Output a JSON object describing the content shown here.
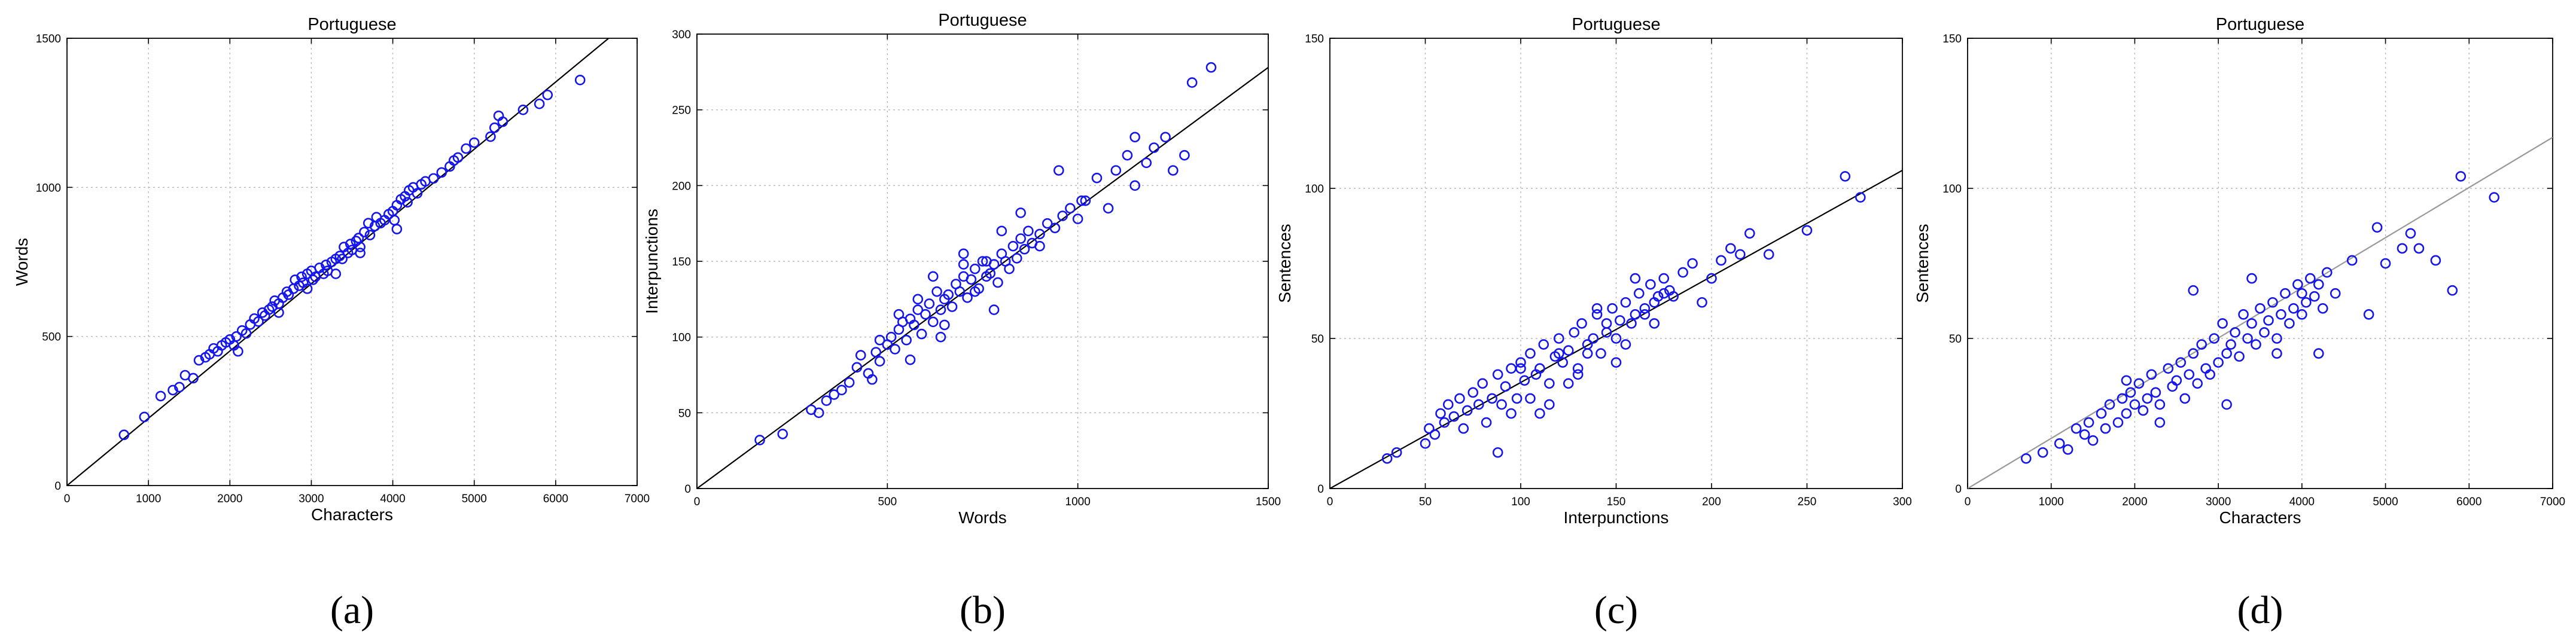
{
  "chart_data": [
    {
      "type": "scatter",
      "title": "Portuguese",
      "xlabel": "Characters",
      "ylabel": "Words",
      "panel_label": "(a)",
      "xlim": [
        0,
        7000
      ],
      "ylim": [
        0,
        1500
      ],
      "xticks": [
        0,
        1000,
        2000,
        3000,
        4000,
        5000,
        6000,
        7000
      ],
      "yticks": [
        0,
        500,
        1000,
        1500
      ],
      "xtick_labels": [
        "0",
        "1000",
        "2000",
        "3000",
        "4000",
        "5000",
        "6000",
        "7000"
      ],
      "ytick_labels": [
        "0",
        "500",
        "1000",
        "1500"
      ],
      "grid": true,
      "fit_line": {
        "x": [
          0,
          6650
        ],
        "y": [
          0,
          1500
        ],
        "color": "#000000"
      },
      "series": [
        {
          "color": "#1414ee",
          "marker": "circle-open",
          "x": [
            700,
            950,
            1150,
            1300,
            1380,
            1450,
            1550,
            1620,
            1700,
            1750,
            1800,
            1850,
            1900,
            1950,
            2000,
            2050,
            2080,
            2150,
            2200,
            2250,
            2300,
            2350,
            2400,
            2430,
            2480,
            2520,
            2550,
            2600,
            2650,
            2700,
            2720,
            2780,
            2800,
            2850,
            2880,
            2900,
            2950,
            3000,
            3020,
            3050,
            3100,
            3150,
            3180,
            3200,
            3250,
            3300,
            3350,
            3380,
            3400,
            3450,
            3480,
            3500,
            3550,
            3580,
            3600,
            3650,
            3700,
            3720,
            3780,
            3800,
            3850,
            3900,
            3950,
            4000,
            4020,
            4050,
            4100,
            4150,
            4180,
            4200,
            4250,
            4300,
            4350,
            4400,
            4500,
            4600,
            4700,
            4750,
            4800,
            4900,
            5000,
            5200,
            5250,
            5300,
            5350,
            5600,
            5800,
            5900,
            6300,
            2100,
            2600,
            2950,
            3300,
            3600,
            4050
          ],
          "y": [
            170,
            230,
            300,
            320,
            330,
            370,
            360,
            420,
            430,
            440,
            460,
            450,
            470,
            480,
            490,
            470,
            500,
            520,
            510,
            540,
            560,
            550,
            580,
            570,
            590,
            600,
            620,
            610,
            630,
            650,
            640,
            660,
            690,
            670,
            700,
            680,
            710,
            720,
            690,
            700,
            730,
            710,
            740,
            720,
            750,
            760,
            770,
            760,
            800,
            780,
            810,
            790,
            820,
            830,
            800,
            850,
            880,
            840,
            870,
            900,
            880,
            890,
            910,
            920,
            890,
            940,
            960,
            970,
            950,
            990,
            1000,
            980,
            1010,
            1020,
            1030,
            1050,
            1070,
            1090,
            1100,
            1130,
            1150,
            1170,
            1200,
            1240,
            1220,
            1260,
            1280,
            1310,
            1360,
            450,
            580,
            660,
            710,
            780,
            860
          ]
        }
      ]
    },
    {
      "type": "scatter",
      "title": "Portuguese",
      "xlabel": "Words",
      "ylabel": "Interpunctions",
      "panel_label": "(b)",
      "xlim": [
        0,
        1500
      ],
      "ylim": [
        0,
        300
      ],
      "xticks": [
        0,
        500,
        1000,
        1500
      ],
      "yticks": [
        0,
        50,
        100,
        150,
        200,
        250,
        300
      ],
      "xtick_labels": [
        "0",
        "500",
        "1000",
        "1500"
      ],
      "ytick_labels": [
        "0",
        "50",
        "100",
        "150",
        "200",
        "250",
        "300"
      ],
      "grid": true,
      "fit_line": {
        "x": [
          0,
          1500
        ],
        "y": [
          0,
          278
        ],
        "color": "#000000"
      },
      "series": [
        {
          "color": "#1414ee",
          "marker": "circle-open",
          "x": [
            165,
            225,
            300,
            320,
            340,
            360,
            380,
            400,
            420,
            430,
            450,
            460,
            470,
            480,
            500,
            510,
            520,
            530,
            540,
            550,
            560,
            570,
            580,
            590,
            600,
            610,
            620,
            630,
            640,
            650,
            660,
            670,
            680,
            690,
            700,
            710,
            720,
            730,
            740,
            750,
            760,
            770,
            780,
            790,
            800,
            810,
            820,
            830,
            840,
            850,
            860,
            870,
            880,
            900,
            920,
            940,
            960,
            980,
            1000,
            1020,
            1050,
            1080,
            1100,
            1130,
            1150,
            1180,
            1200,
            1230,
            1250,
            1280,
            1300,
            1350,
            480,
            530,
            580,
            620,
            650,
            700,
            730,
            760,
            800,
            850,
            950,
            560,
            640,
            700,
            780,
            900,
            1010,
            1150
          ],
          "y": [
            32,
            36,
            52,
            50,
            58,
            62,
            65,
            70,
            80,
            88,
            76,
            72,
            90,
            84,
            95,
            100,
            92,
            105,
            110,
            98,
            112,
            108,
            118,
            102,
            115,
            122,
            110,
            130,
            118,
            125,
            128,
            120,
            135,
            130,
            140,
            126,
            138,
            145,
            132,
            150,
            140,
            142,
            148,
            136,
            155,
            150,
            145,
            160,
            152,
            165,
            158,
            170,
            162,
            168,
            175,
            172,
            180,
            185,
            178,
            190,
            205,
            185,
            210,
            220,
            200,
            215,
            225,
            232,
            210,
            220,
            268,
            278,
            98,
            115,
            125,
            140,
            108,
            155,
            130,
            150,
            170,
            182,
            210,
            85,
            100,
            148,
            118,
            160,
            190,
            232
          ]
        }
      ]
    },
    {
      "type": "scatter",
      "title": "Portuguese",
      "xlabel": "Interpunctions",
      "ylabel": "Sentences",
      "panel_label": "(c)",
      "xlim": [
        0,
        300
      ],
      "ylim": [
        0,
        150
      ],
      "xticks": [
        0,
        50,
        100,
        150,
        200,
        250,
        300
      ],
      "yticks": [
        0,
        50,
        100,
        150
      ],
      "xtick_labels": [
        "0",
        "50",
        "100",
        "150",
        "200",
        "250",
        "300"
      ],
      "ytick_labels": [
        "0",
        "50",
        "100",
        "150"
      ],
      "grid": true,
      "fit_line": {
        "x": [
          0,
          300
        ],
        "y": [
          0,
          106
        ],
        "color": "#000000"
      },
      "series": [
        {
          "color": "#1414ee",
          "marker": "circle-open",
          "x": [
            30,
            35,
            50,
            52,
            55,
            58,
            60,
            62,
            65,
            68,
            70,
            72,
            75,
            78,
            80,
            82,
            85,
            88,
            90,
            92,
            95,
            98,
            100,
            102,
            105,
            108,
            110,
            112,
            115,
            118,
            120,
            122,
            125,
            128,
            130,
            132,
            135,
            138,
            140,
            142,
            145,
            148,
            150,
            152,
            155,
            158,
            160,
            162,
            165,
            168,
            170,
            172,
            175,
            178,
            180,
            185,
            190,
            195,
            200,
            205,
            210,
            215,
            220,
            230,
            250,
            270,
            278,
            88,
            95,
            105,
            115,
            125,
            135,
            145,
            155,
            165,
            175,
            110,
            130,
            150,
            170,
            100,
            120,
            140,
            160
          ],
          "y": [
            10,
            12,
            15,
            20,
            18,
            25,
            22,
            28,
            24,
            30,
            20,
            26,
            32,
            28,
            35,
            22,
            30,
            38,
            28,
            34,
            40,
            30,
            42,
            36,
            45,
            38,
            40,
            48,
            35,
            44,
            50,
            42,
            46,
            52,
            40,
            55,
            48,
            50,
            58,
            45,
            52,
            60,
            50,
            56,
            62,
            55,
            58,
            65,
            60,
            68,
            62,
            64,
            70,
            66,
            64,
            72,
            75,
            62,
            70,
            76,
            80,
            78,
            85,
            78,
            86,
            104,
            97,
            12,
            25,
            30,
            28,
            35,
            45,
            55,
            48,
            58,
            65,
            25,
            38,
            42,
            55,
            40,
            45,
            60,
            70
          ]
        }
      ]
    },
    {
      "type": "scatter",
      "title": "Portuguese",
      "xlabel": "Characters",
      "ylabel": "Sentences",
      "panel_label": "(d)",
      "xlim": [
        0,
        7000
      ],
      "ylim": [
        0,
        150
      ],
      "xticks": [
        0,
        1000,
        2000,
        3000,
        4000,
        5000,
        6000,
        7000
      ],
      "yticks": [
        0,
        50,
        100,
        150
      ],
      "xtick_labels": [
        "0",
        "1000",
        "2000",
        "3000",
        "4000",
        "5000",
        "6000",
        "7000"
      ],
      "ytick_labels": [
        "0",
        "50",
        "100",
        "150"
      ],
      "grid": true,
      "fit_line": {
        "x": [
          0,
          7000
        ],
        "y": [
          0,
          117
        ],
        "color": "#999999"
      },
      "series": [
        {
          "color": "#1414ee",
          "marker": "circle-open",
          "x": [
            700,
            900,
            1100,
            1200,
            1300,
            1400,
            1450,
            1500,
            1600,
            1650,
            1700,
            1800,
            1850,
            1900,
            1950,
            2000,
            2050,
            2100,
            2150,
            2200,
            2250,
            2300,
            2400,
            2450,
            2500,
            2550,
            2600,
            2650,
            2700,
            2750,
            2800,
            2850,
            2900,
            2950,
            3000,
            3050,
            3100,
            3150,
            3200,
            3250,
            3300,
            3350,
            3400,
            3450,
            3500,
            3550,
            3600,
            3650,
            3700,
            3750,
            3800,
            3850,
            3900,
            3950,
            4000,
            4050,
            4100,
            4150,
            4200,
            4250,
            4300,
            4400,
            4600,
            4800,
            4900,
            5000,
            5200,
            5300,
            5400,
            5600,
            5800,
            5900,
            6300,
            2700,
            3400,
            4000,
            4200,
            3100,
            2300,
            3700,
            1900
          ],
          "y": [
            10,
            12,
            15,
            13,
            20,
            18,
            22,
            16,
            25,
            20,
            28,
            22,
            30,
            25,
            32,
            28,
            35,
            26,
            30,
            38,
            32,
            28,
            40,
            34,
            36,
            42,
            30,
            38,
            45,
            35,
            48,
            40,
            38,
            50,
            42,
            55,
            45,
            48,
            52,
            44,
            58,
            50,
            55,
            48,
            60,
            52,
            56,
            62,
            50,
            58,
            65,
            55,
            60,
            68,
            58,
            62,
            70,
            64,
            68,
            60,
            72,
            65,
            76,
            58,
            87,
            75,
            80,
            85,
            80,
            76,
            66,
            104,
            97,
            66,
            70,
            65,
            45,
            28,
            22,
            45,
            36
          ]
        }
      ]
    }
  ]
}
